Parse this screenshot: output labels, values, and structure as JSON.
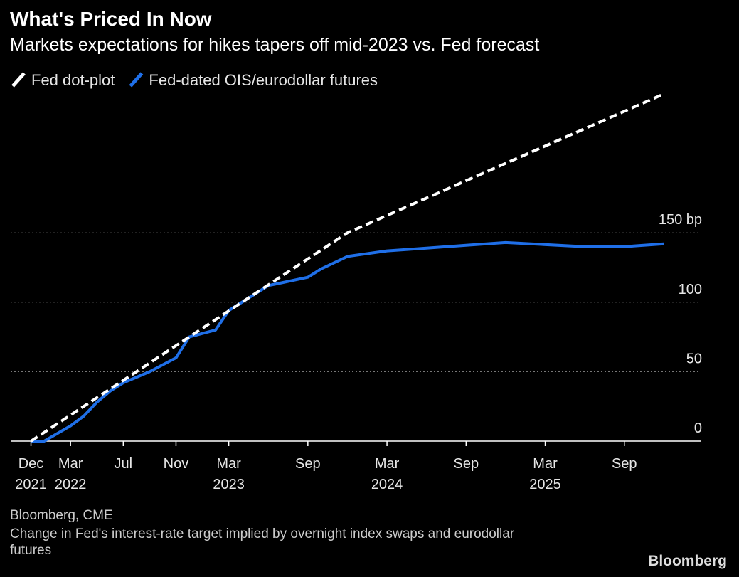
{
  "chart_data": {
    "type": "line",
    "title": "What's Priced In Now",
    "subtitle": "Markets expectations for hikes tapers off mid-2023 vs. Fed forecast",
    "source": "Bloomberg, CME",
    "note": "Change in Fed's interest-rate target implied by overnight index swaps and eurodollar futures",
    "brand": "Bloomberg",
    "xlim": [
      "2021-11",
      "2026-03"
    ],
    "xticks": [
      {
        "value": "2021-12",
        "label": "Dec",
        "sublabel": "2021"
      },
      {
        "value": "2022-03",
        "label": "Mar",
        "sublabel": "2022"
      },
      {
        "value": "2022-07",
        "label": "Jul"
      },
      {
        "value": "2022-11",
        "label": "Nov"
      },
      {
        "value": "2023-03",
        "label": "Mar",
        "sublabel": "2023"
      },
      {
        "value": "2023-09",
        "label": "Sep"
      },
      {
        "value": "2024-03",
        "label": "Mar",
        "sublabel": "2024"
      },
      {
        "value": "2024-09",
        "label": "Sep"
      },
      {
        "value": "2025-03",
        "label": "Mar",
        "sublabel": "2025"
      },
      {
        "value": "2025-09",
        "label": "Sep"
      }
    ],
    "ylim": [
      0,
      250
    ],
    "yticks": [
      0,
      50,
      100,
      {
        "value": 150,
        "label": "150 bp"
      }
    ],
    "grid": true,
    "legend": "top-left",
    "series": [
      {
        "name": "Fed dot-plot",
        "color": "#ffffff",
        "dashed": true,
        "x": [
          "2021-12",
          "2022-12",
          "2023-12",
          "2024-12",
          "2025-12"
        ],
        "values": [
          0,
          75,
          150,
          200,
          250
        ]
      },
      {
        "name": "Fed-dated OIS/eurodollar futures",
        "color": "#1f6fe8",
        "dashed": false,
        "x": [
          "2021-12",
          "2022-01",
          "2022-03",
          "2022-04",
          "2022-05",
          "2022-06",
          "2022-07",
          "2022-09",
          "2022-11",
          "2022-12",
          "2023-02",
          "2023-03",
          "2023-05",
          "2023-06",
          "2023-07",
          "2023-09",
          "2023-10",
          "2023-12",
          "2024-03",
          "2024-06",
          "2024-09",
          "2024-12",
          "2025-06",
          "2025-09",
          "2025-12"
        ],
        "values": [
          0,
          0,
          11,
          18,
          28,
          36,
          42,
          50,
          60,
          75,
          80,
          94,
          106,
          112,
          114,
          118,
          124,
          133,
          137,
          139,
          141,
          143,
          140,
          140,
          142
        ]
      }
    ]
  }
}
